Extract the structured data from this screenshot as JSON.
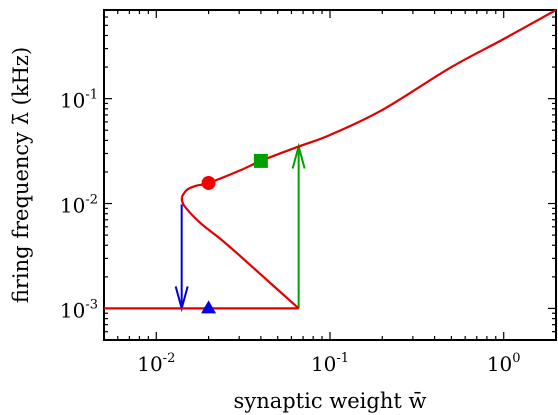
{
  "chart_data": {
    "type": "line",
    "xlabel": "synaptic weight w̄",
    "ylabel": "firing frequency λ̄ (kHz)",
    "xscale": "log",
    "yscale": "log",
    "xlim": [
      0.005,
      2.0
    ],
    "ylim": [
      0.0005,
      0.7
    ],
    "grid": false,
    "x_ticks": [
      {
        "base": "10",
        "exp": "-2",
        "value": 0.01
      },
      {
        "base": "10",
        "exp": "-1",
        "value": 0.1
      },
      {
        "base": "10",
        "exp": "0",
        "value": 1
      }
    ],
    "y_ticks": [
      {
        "base": "10",
        "exp": "-3",
        "value": 0.001
      },
      {
        "base": "10",
        "exp": "-2",
        "value": 0.01
      },
      {
        "base": "10",
        "exp": "-1",
        "value": 0.1
      }
    ],
    "series": [
      {
        "color": "#e00000",
        "parts": [
          {
            "kind": "lower",
            "points": [
              [
                0.005,
                0.001
              ],
              [
                0.066,
                0.001
              ]
            ]
          },
          {
            "kind": "middle",
            "points": [
              [
                0.066,
                0.001
              ],
              [
                0.04,
                0.0021
              ],
              [
                0.025,
                0.0042
              ],
              [
                0.018,
                0.0065
              ],
              [
                0.0145,
                0.0095
              ],
              [
                0.014,
                0.0115
              ]
            ]
          },
          {
            "kind": "upper",
            "points": [
              [
                0.014,
                0.0115
              ],
              [
                0.015,
                0.0135
              ],
              [
                0.017,
                0.0148
              ],
              [
                0.02,
                0.0157
              ],
              [
                0.03,
                0.0205
              ],
              [
                0.04,
                0.0255
              ],
              [
                0.066,
                0.035
              ],
              [
                0.1,
                0.045
              ],
              [
                0.2,
                0.078
              ],
              [
                0.5,
                0.2
              ],
              [
                1.0,
                0.37
              ],
              [
                2.0,
                0.7
              ]
            ]
          }
        ]
      }
    ],
    "arrows": [
      {
        "color": "#0000e0",
        "x": 0.014,
        "from": 0.0098,
        "to": 0.001
      },
      {
        "color": "#00a000",
        "x": 0.066,
        "from": 0.001,
        "to": 0.035
      }
    ],
    "markers": [
      {
        "shape": "circle",
        "color": "#f00000",
        "x": 0.02,
        "y": 0.0157
      },
      {
        "shape": "square",
        "color": "#00a000",
        "x": 0.04,
        "y": 0.0255
      },
      {
        "shape": "triangle",
        "color": "#0000e0",
        "x": 0.02,
        "y": 0.001
      }
    ]
  }
}
